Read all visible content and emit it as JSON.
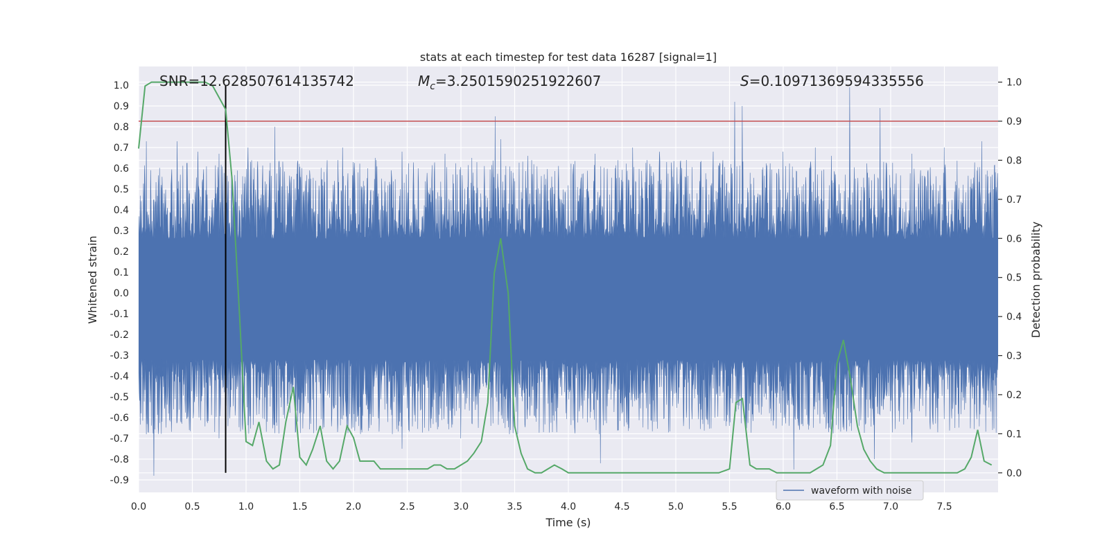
{
  "chart_data": {
    "type": "line",
    "title": "stats at each timestep for test data 16287 [signal=1]",
    "xlabel": "Time (s)",
    "ylabel_left": "Whitened strain",
    "ylabel_right": "Detection probability",
    "xlim": [
      0.0,
      8.0
    ],
    "ylim_left": [
      -0.96,
      1.09
    ],
    "ylim_right": [
      -0.05,
      1.04
    ],
    "x_ticks": [
      "0.0",
      "0.5",
      "1.0",
      "1.5",
      "2.0",
      "2.5",
      "3.0",
      "3.5",
      "4.0",
      "4.5",
      "5.0",
      "5.5",
      "6.0",
      "6.5",
      "7.0",
      "7.5"
    ],
    "y_left_ticks": [
      "1.0",
      "0.9",
      "0.8",
      "0.7",
      "0.6",
      "0.5",
      "0.4",
      "0.3",
      "0.2",
      "0.1",
      "0.0",
      "-0.1",
      "-0.2",
      "-0.3",
      "-0.4",
      "-0.5",
      "-0.6",
      "-0.7",
      "-0.8",
      "-0.9"
    ],
    "y_right_ticks": [
      "1.0",
      "0.9",
      "0.8",
      "0.7",
      "0.6",
      "0.5",
      "0.4",
      "0.3",
      "0.2",
      "0.1",
      "0.0"
    ],
    "grid": true,
    "annotations": {
      "snr": "SNR=12.628507614135742",
      "mc_symbol": "M",
      "mc_sub": "c",
      "mc_value": "=3.2501590251922607",
      "s_symbol": "S",
      "s_value": "=0.10971369594335556"
    },
    "legend": {
      "label": "waveform with noise",
      "position": "lower-right"
    },
    "threshold": {
      "axis": "right",
      "value": 0.9,
      "color": "#c44e52"
    },
    "marker_time": 0.81,
    "waveform": {
      "name": "waveform with noise",
      "color": "#4c72b0",
      "core_band": [
        -0.32,
        0.26
      ],
      "upper_peaks": [
        [
          0.07,
          0.73
        ],
        [
          0.36,
          0.73
        ],
        [
          0.55,
          0.68
        ],
        [
          0.75,
          0.67
        ],
        [
          1.02,
          0.7
        ],
        [
          1.27,
          0.8
        ],
        [
          1.9,
          0.7
        ],
        [
          2.2,
          0.65
        ],
        [
          2.45,
          0.68
        ],
        [
          2.6,
          0.6
        ],
        [
          2.85,
          0.67
        ],
        [
          3.1,
          0.65
        ],
        [
          3.32,
          0.85
        ],
        [
          3.37,
          0.74
        ],
        [
          3.62,
          0.66
        ],
        [
          4.05,
          0.62
        ],
        [
          4.25,
          0.67
        ],
        [
          4.6,
          0.7
        ],
        [
          4.85,
          0.68
        ],
        [
          5.1,
          0.64
        ],
        [
          5.35,
          0.68
        ],
        [
          5.55,
          0.92
        ],
        [
          5.62,
          0.9
        ],
        [
          6.0,
          0.68
        ],
        [
          6.3,
          0.7
        ],
        [
          6.45,
          0.66
        ],
        [
          6.62,
          0.99
        ],
        [
          6.9,
          0.89
        ],
        [
          7.2,
          0.67
        ],
        [
          7.5,
          0.7
        ],
        [
          7.85,
          0.73
        ]
      ],
      "lower_peaks": [
        [
          0.07,
          -0.68
        ],
        [
          0.14,
          -0.88
        ],
        [
          0.22,
          -0.62
        ],
        [
          0.4,
          -0.63
        ],
        [
          0.75,
          -0.7
        ],
        [
          1.2,
          -0.62
        ],
        [
          1.6,
          -0.63
        ],
        [
          1.85,
          -0.67
        ],
        [
          2.45,
          -0.75
        ],
        [
          3.0,
          -0.7
        ],
        [
          3.45,
          -0.68
        ],
        [
          3.7,
          -0.62
        ],
        [
          4.3,
          -0.82
        ],
        [
          4.5,
          -0.58
        ],
        [
          4.8,
          -0.62
        ],
        [
          5.1,
          -0.6
        ],
        [
          5.5,
          -0.64
        ],
        [
          6.1,
          -0.85
        ],
        [
          6.4,
          -0.62
        ],
        [
          6.85,
          -0.8
        ],
        [
          7.2,
          -0.72
        ],
        [
          7.6,
          -0.65
        ],
        [
          7.95,
          -0.66
        ]
      ]
    },
    "probability": {
      "name": "detection probability",
      "color": "#55a868",
      "x": [
        0.0,
        0.06,
        0.12,
        0.19,
        0.25,
        0.31,
        0.37,
        0.44,
        0.5,
        0.56,
        0.62,
        0.69,
        0.75,
        0.81,
        0.87,
        0.94,
        1.0,
        1.06,
        1.12,
        1.19,
        1.25,
        1.31,
        1.37,
        1.44,
        1.5,
        1.56,
        1.62,
        1.69,
        1.75,
        1.81,
        1.87,
        1.94,
        2.0,
        2.06,
        2.12,
        2.19,
        2.25,
        2.31,
        2.37,
        2.44,
        2.5,
        2.56,
        2.62,
        2.69,
        2.75,
        2.81,
        2.87,
        2.94,
        3.0,
        3.06,
        3.12,
        3.19,
        3.25,
        3.31,
        3.37,
        3.44,
        3.5,
        3.56,
        3.62,
        3.69,
        3.75,
        3.81,
        3.87,
        3.94,
        4.0,
        4.06,
        4.12,
        4.19,
        4.25,
        4.31,
        4.5,
        4.75,
        5.0,
        5.25,
        5.4,
        5.5,
        5.56,
        5.62,
        5.69,
        5.75,
        5.81,
        5.87,
        5.94,
        6.0,
        6.06,
        6.12,
        6.19,
        6.25,
        6.31,
        6.37,
        6.44,
        6.5,
        6.56,
        6.62,
        6.69,
        6.75,
        6.81,
        6.87,
        6.94,
        7.0,
        7.06,
        7.25,
        7.5,
        7.62,
        7.69,
        7.75,
        7.81,
        7.87,
        7.94
      ],
      "y": [
        0.83,
        0.99,
        1.0,
        1.0,
        1.0,
        1.0,
        1.0,
        1.0,
        1.0,
        1.0,
        1.0,
        0.99,
        0.96,
        0.93,
        0.75,
        0.4,
        0.08,
        0.07,
        0.13,
        0.03,
        0.01,
        0.02,
        0.13,
        0.22,
        0.04,
        0.02,
        0.06,
        0.12,
        0.03,
        0.01,
        0.03,
        0.12,
        0.09,
        0.03,
        0.03,
        0.03,
        0.01,
        0.01,
        0.01,
        0.01,
        0.01,
        0.01,
        0.01,
        0.01,
        0.02,
        0.02,
        0.01,
        0.01,
        0.02,
        0.03,
        0.05,
        0.08,
        0.18,
        0.51,
        0.6,
        0.46,
        0.12,
        0.05,
        0.01,
        0.0,
        0.0,
        0.01,
        0.02,
        0.01,
        0.0,
        0.0,
        0.0,
        0.0,
        0.0,
        0.0,
        0.0,
        0.0,
        0.0,
        0.0,
        0.0,
        0.01,
        0.18,
        0.19,
        0.02,
        0.01,
        0.01,
        0.01,
        0.0,
        0.0,
        0.0,
        0.0,
        0.0,
        0.0,
        0.01,
        0.02,
        0.07,
        0.28,
        0.34,
        0.25,
        0.12,
        0.06,
        0.03,
        0.01,
        0.0,
        0.0,
        0.0,
        0.0,
        0.0,
        0.0,
        0.01,
        0.04,
        0.11,
        0.03,
        0.02
      ]
    }
  }
}
